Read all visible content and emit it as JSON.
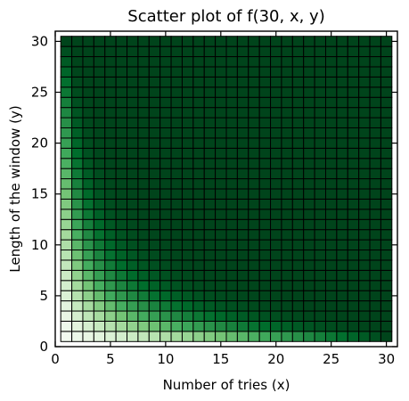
{
  "chart_data": {
    "type": "heatmap",
    "title": "Scatter plot of f(30, x, y)",
    "xlabel": "Number of tries (x)",
    "ylabel": "Length of the window (y)",
    "xlim": [
      0,
      31
    ],
    "ylim": [
      0,
      31
    ],
    "x_ticks": [
      0,
      5,
      10,
      15,
      20,
      25,
      30
    ],
    "y_ticks": [
      0,
      5,
      10,
      15,
      20,
      25,
      30
    ],
    "x_tick_labels": [
      "0",
      "5",
      "10",
      "15",
      "20",
      "25",
      "30"
    ],
    "y_tick_labels": [
      "0",
      "5",
      "10",
      "15",
      "20",
      "25",
      "30"
    ],
    "x_range": [
      1,
      30
    ],
    "y_range": [
      1,
      30
    ],
    "n": 30,
    "colormap": "Greens",
    "value_range": [
      0,
      1
    ],
    "grid": false,
    "cell_edgecolor": "#000000",
    "colors": {
      "low": "#f7fcf5",
      "high": "#00441b"
    }
  }
}
